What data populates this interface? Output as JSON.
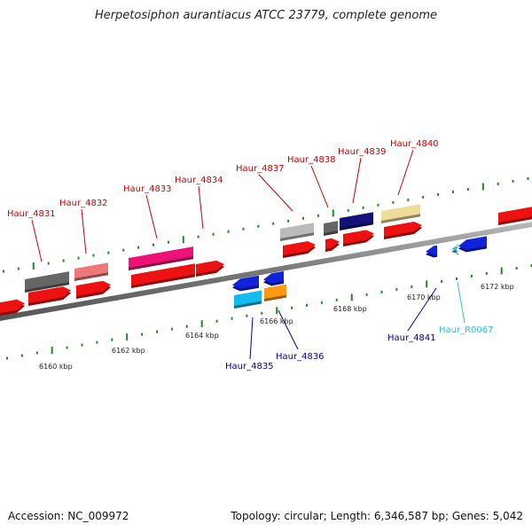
{
  "title": "Herpetosiphon aurantiacus ATCC 23779, complete genome",
  "footer": {
    "accession": "Accession: NC_009972",
    "summary": "Topology: circular; Length: 6,346,587 bp; Genes: 5,042"
  },
  "colors": {
    "forward_label": "#cc0000",
    "reverse_label": "#000099",
    "rna_label": "#33bbdd",
    "tick": "#228822",
    "backbone": "#888888"
  },
  "scale_labels": [
    "6160 kbp",
    "6162 kbp",
    "6164 kbp",
    "6166 kbp",
    "6168 kbp",
    "6170 kbp",
    "6172 kbp"
  ],
  "gene_labels": [
    {
      "text": "Haur_4831",
      "strand": "forward"
    },
    {
      "text": "Haur_4832",
      "strand": "forward"
    },
    {
      "text": "Haur_4833",
      "strand": "forward"
    },
    {
      "text": "Haur_4834",
      "strand": "forward"
    },
    {
      "text": "Haur_4837",
      "strand": "forward"
    },
    {
      "text": "Haur_4838",
      "strand": "forward"
    },
    {
      "text": "Haur_4839",
      "strand": "forward"
    },
    {
      "text": "Haur_4840",
      "strand": "forward"
    },
    {
      "text": "Haur_4835",
      "strand": "reverse"
    },
    {
      "text": "Haur_4836",
      "strand": "reverse"
    },
    {
      "text": "Haur_4841",
      "strand": "reverse"
    },
    {
      "text": "Haur_R0067",
      "strand": "rna"
    }
  ]
}
